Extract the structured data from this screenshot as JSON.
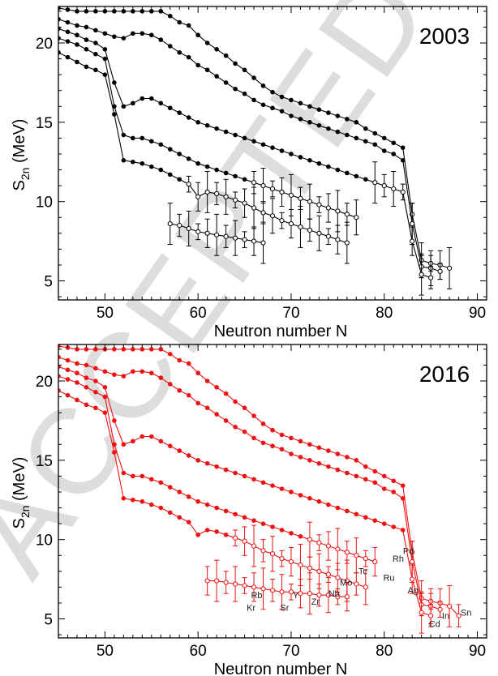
{
  "chart_data": [
    {
      "type": "line",
      "title": "2003",
      "xlabel": "Neutron number N",
      "ylabel": "S2n (MeV)",
      "ylabel_main": "S",
      "ylabel_sub": "2n",
      "ylabel_unit": " (MeV)",
      "xlim": [
        45,
        91
      ],
      "ylim": [
        3.8,
        22.3
      ],
      "xticks": [
        50,
        60,
        70,
        80,
        90
      ],
      "yticks": [
        5,
        10,
        15,
        20
      ],
      "color": "#000000",
      "grid": false,
      "series": [
        {
          "x": [
            45,
            46,
            47,
            48,
            49,
            50,
            51,
            52,
            53,
            54,
            55,
            56,
            57,
            58,
            59,
            60,
            61,
            62,
            63,
            64,
            65,
            66,
            67,
            68,
            69,
            70,
            71,
            72,
            73,
            74,
            75,
            76,
            77,
            78,
            79,
            80,
            81,
            82,
            83,
            84,
            85,
            86,
            87
          ],
          "y": [
            22.2,
            22.1,
            22.0,
            22.0,
            22.0,
            22.0,
            22.0,
            22.0,
            22.0,
            22.0,
            22.0,
            22.0,
            21.7,
            21.3,
            21.1,
            20.5,
            20.0,
            19.6,
            19.2,
            18.7,
            18.3,
            17.8,
            17.3,
            16.9,
            16.6,
            16.4,
            16.2,
            16.0,
            15.8,
            15.6,
            15.4,
            15.2,
            15.0,
            14.6,
            14.3,
            14.0,
            13.7,
            13.4,
            9.2,
            6.3,
            6.1,
            6.0,
            5.8
          ]
        },
        {
          "x": [
            45,
            46,
            47,
            48,
            49,
            50,
            51,
            52,
            53,
            54,
            55,
            56,
            57,
            58,
            59,
            60,
            61,
            62,
            63,
            64,
            65,
            66,
            67,
            68,
            69,
            70,
            71,
            72,
            73,
            74,
            75,
            76,
            77,
            78,
            79,
            80,
            81,
            82,
            83,
            84,
            85,
            86
          ],
          "y": [
            21.5,
            21.3,
            21.1,
            21.0,
            20.8,
            20.6,
            20.4,
            20.3,
            20.6,
            20.6,
            20.5,
            20.2,
            19.8,
            19.4,
            19.1,
            18.6,
            18.3,
            17.9,
            17.5,
            17.1,
            16.8,
            16.4,
            16.1,
            15.9,
            15.7,
            15.4,
            15.2,
            15.0,
            14.8,
            14.6,
            14.4,
            14.2,
            14.0,
            13.8,
            13.6,
            13.2,
            13.0,
            12.6,
            8.6,
            5.9,
            5.8,
            5.6
          ]
        },
        {
          "x": [
            45,
            46,
            47,
            48,
            49,
            50,
            51,
            52,
            53,
            54,
            55,
            56,
            57,
            58,
            59,
            60,
            61,
            62,
            63,
            64,
            65,
            66,
            67,
            68,
            69,
            70,
            71,
            72,
            73,
            74,
            75,
            76,
            77,
            78,
            79,
            80,
            81,
            82,
            83,
            84,
            85
          ],
          "y": [
            20.9,
            20.7,
            20.5,
            20.2,
            20.0,
            19.6,
            17.5,
            16.0,
            16.2,
            16.5,
            16.5,
            16.2,
            15.9,
            15.6,
            15.3,
            15.0,
            14.8,
            14.6,
            14.4,
            14.2,
            14.0,
            13.8,
            13.6,
            13.4,
            13.2,
            13.0,
            12.8,
            12.6,
            12.4,
            12.2,
            12.0,
            11.8,
            11.6,
            11.4,
            11.2,
            11.0,
            10.8,
            10.6,
            7.5,
            5.4,
            5.2
          ]
        },
        {
          "x": [
            45,
            46,
            47,
            48,
            49,
            50,
            51,
            52,
            53,
            54,
            55,
            56,
            57,
            58,
            59,
            60,
            61,
            62,
            63,
            64,
            65,
            66,
            67,
            68,
            69,
            70,
            71,
            72,
            73,
            74,
            75,
            76,
            77
          ],
          "y": [
            20.3,
            20.1,
            19.9,
            19.6,
            19.3,
            19.0,
            16.0,
            14.2,
            14.0,
            14.0,
            13.8,
            13.6,
            13.3,
            13.0,
            12.7,
            12.4,
            12.2,
            12.0,
            11.8,
            11.6,
            11.4,
            11.2,
            11.0,
            10.8,
            10.6,
            10.4,
            10.2,
            10.0,
            9.8,
            9.6,
            9.4,
            9.2,
            9.0
          ]
        },
        {
          "x": [
            45,
            46,
            47,
            48,
            49,
            50,
            51,
            52,
            53,
            54,
            55,
            56,
            57,
            58,
            59,
            60,
            61,
            62,
            63,
            64,
            65,
            66,
            67,
            68,
            69,
            70,
            71,
            72,
            73,
            74,
            75,
            76
          ],
          "y": [
            19.4,
            19.1,
            18.8,
            18.5,
            18.3,
            18.0,
            15.5,
            12.6,
            12.5,
            12.4,
            12.2,
            12.0,
            11.7,
            11.4,
            11.1,
            10.3,
            10.6,
            10.5,
            10.3,
            10.1,
            9.9,
            9.6,
            9.3,
            9.1,
            8.8,
            8.6,
            8.4,
            8.2,
            8.0,
            7.8,
            7.6,
            7.4
          ]
        },
        {
          "x": [
            57,
            58,
            59,
            60,
            61,
            62,
            63,
            64,
            65,
            66,
            67
          ],
          "y": [
            8.6,
            8.5,
            8.3,
            8.1,
            8.0,
            7.9,
            7.8,
            7.7,
            7.6,
            7.5,
            7.4
          ]
        }
      ]
    },
    {
      "type": "line",
      "title": "2016",
      "xlabel": "Neutron number N",
      "ylabel": "S2n (MeV)",
      "ylabel_main": "S",
      "ylabel_sub": "2n",
      "ylabel_unit": " (MeV)",
      "xlim": [
        45,
        91
      ],
      "ylim": [
        3.8,
        22.3
      ],
      "xticks": [
        50,
        60,
        70,
        80,
        90
      ],
      "yticks": [
        5,
        10,
        15,
        20
      ],
      "color": "#ee1111",
      "grid": false,
      "labels": [
        {
          "text": "Kr",
          "x": 65.7,
          "y": 5.5
        },
        {
          "text": "Rb",
          "x": 66.3,
          "y": 6.3
        },
        {
          "text": "Sr",
          "x": 69.3,
          "y": 5.5
        },
        {
          "text": "Y",
          "x": 70.5,
          "y": 6.3
        },
        {
          "text": "Zr",
          "x": 72.6,
          "y": 5.9
        },
        {
          "text": "Nb",
          "x": 74.6,
          "y": 6.4
        },
        {
          "text": "Mo",
          "x": 75.9,
          "y": 7.1
        },
        {
          "text": "Tc",
          "x": 77.7,
          "y": 7.8
        },
        {
          "text": "Ru",
          "x": 80.5,
          "y": 7.4
        },
        {
          "text": "Rh",
          "x": 81.5,
          "y": 8.6
        },
        {
          "text": "Pd",
          "x": 82.6,
          "y": 9.1
        },
        {
          "text": "Ag",
          "x": 83.1,
          "y": 6.6
        },
        {
          "text": "Cd",
          "x": 85.4,
          "y": 4.5
        },
        {
          "text": "In",
          "x": 86.6,
          "y": 5.0
        },
        {
          "text": "Sn",
          "x": 88.8,
          "y": 5.2
        }
      ],
      "series": [
        {
          "x": [
            45,
            46,
            47,
            48,
            49,
            50,
            51,
            52,
            53,
            54,
            55,
            56,
            57,
            58,
            59,
            60,
            61,
            62,
            63,
            64,
            65,
            66,
            67,
            68,
            69,
            70,
            71,
            72,
            73,
            74,
            75,
            76,
            77,
            78,
            79,
            80,
            81,
            82,
            83,
            84,
            85,
            86,
            87,
            88
          ],
          "y": [
            22.2,
            22.1,
            22.0,
            22.0,
            22.0,
            22.0,
            22.0,
            22.0,
            22.0,
            22.0,
            22.0,
            22.0,
            21.7,
            21.3,
            21.1,
            20.5,
            20.0,
            19.6,
            19.2,
            18.7,
            18.3,
            17.8,
            17.3,
            16.9,
            16.6,
            16.4,
            16.2,
            16.0,
            15.8,
            15.6,
            15.4,
            15.2,
            15.0,
            14.6,
            14.3,
            14.0,
            13.7,
            13.4,
            9.2,
            6.3,
            6.1,
            6.0,
            5.8,
            5.2
          ]
        },
        {
          "x": [
            45,
            46,
            47,
            48,
            49,
            50,
            51,
            52,
            53,
            54,
            55,
            56,
            57,
            58,
            59,
            60,
            61,
            62,
            63,
            64,
            65,
            66,
            67,
            68,
            69,
            70,
            71,
            72,
            73,
            74,
            75,
            76,
            77,
            78,
            79,
            80,
            81,
            82,
            83,
            84,
            85,
            86
          ],
          "y": [
            21.5,
            21.3,
            21.1,
            21.0,
            20.8,
            20.6,
            20.4,
            20.3,
            20.6,
            20.6,
            20.5,
            20.2,
            19.8,
            19.4,
            19.1,
            18.6,
            18.3,
            17.9,
            17.5,
            17.1,
            16.8,
            16.4,
            16.1,
            15.9,
            15.7,
            15.4,
            15.2,
            15.0,
            14.8,
            14.6,
            14.4,
            14.2,
            14.0,
            13.8,
            13.6,
            13.2,
            13.0,
            12.6,
            8.6,
            5.9,
            5.8,
            5.6
          ]
        },
        {
          "x": [
            45,
            46,
            47,
            48,
            49,
            50,
            51,
            52,
            53,
            54,
            55,
            56,
            57,
            58,
            59,
            60,
            61,
            62,
            63,
            64,
            65,
            66,
            67,
            68,
            69,
            70,
            71,
            72,
            73,
            74,
            75,
            76,
            77,
            78,
            79,
            80,
            81,
            82,
            83,
            84,
            85
          ],
          "y": [
            20.9,
            20.7,
            20.5,
            20.2,
            20.0,
            19.6,
            17.5,
            16.0,
            16.2,
            16.5,
            16.5,
            16.2,
            15.9,
            15.6,
            15.3,
            15.0,
            14.8,
            14.6,
            14.4,
            14.2,
            14.0,
            13.8,
            13.6,
            13.4,
            13.2,
            13.0,
            12.8,
            12.6,
            12.4,
            12.2,
            12.0,
            11.8,
            11.6,
            11.4,
            11.2,
            11.0,
            10.8,
            10.6,
            7.5,
            5.4,
            5.2
          ]
        },
        {
          "x": [
            45,
            46,
            47,
            48,
            49,
            50,
            51,
            52,
            53,
            54,
            55,
            56,
            57,
            58,
            59,
            60,
            61,
            62,
            63,
            64,
            65,
            66,
            67,
            68,
            69,
            70,
            71,
            72,
            73,
            74,
            75,
            76,
            77,
            78,
            79
          ],
          "y": [
            20.3,
            20.1,
            19.9,
            19.6,
            19.3,
            19.0,
            16.0,
            14.2,
            14.0,
            14.0,
            13.8,
            13.6,
            13.3,
            13.0,
            12.7,
            12.4,
            12.2,
            12.0,
            11.8,
            11.6,
            11.4,
            11.2,
            11.0,
            10.8,
            10.6,
            10.4,
            10.2,
            10.0,
            9.8,
            9.6,
            9.4,
            9.2,
            9.0,
            8.8,
            8.6
          ]
        },
        {
          "x": [
            45,
            46,
            47,
            48,
            49,
            50,
            51,
            52,
            53,
            54,
            55,
            56,
            57,
            58,
            59,
            60,
            61,
            62,
            63,
            64,
            65,
            66,
            67,
            68,
            69,
            70,
            71,
            72,
            73,
            74,
            75,
            76,
            77,
            78
          ],
          "y": [
            19.4,
            19.1,
            18.8,
            18.5,
            18.3,
            18.0,
            15.5,
            12.6,
            12.5,
            12.4,
            12.2,
            12.0,
            11.7,
            11.4,
            11.1,
            10.3,
            10.6,
            10.5,
            10.3,
            10.1,
            9.9,
            9.6,
            9.3,
            9.1,
            8.8,
            8.6,
            8.4,
            8.2,
            8.0,
            7.8,
            7.6,
            7.4,
            7.2,
            7.0
          ]
        },
        {
          "x": [
            61,
            62,
            63,
            64,
            65,
            66,
            67,
            68,
            69,
            70,
            71,
            72,
            73,
            74,
            75,
            76
          ],
          "y": [
            7.4,
            7.4,
            7.3,
            7.2,
            7.1,
            7.0,
            6.9,
            6.8,
            6.7,
            6.7,
            6.6,
            6.6,
            6.5,
            6.5,
            6.4,
            6.4
          ]
        }
      ]
    }
  ],
  "watermark": {
    "text": "ACCEPTED MANUSCRIPT",
    "color": "#dddddd"
  }
}
